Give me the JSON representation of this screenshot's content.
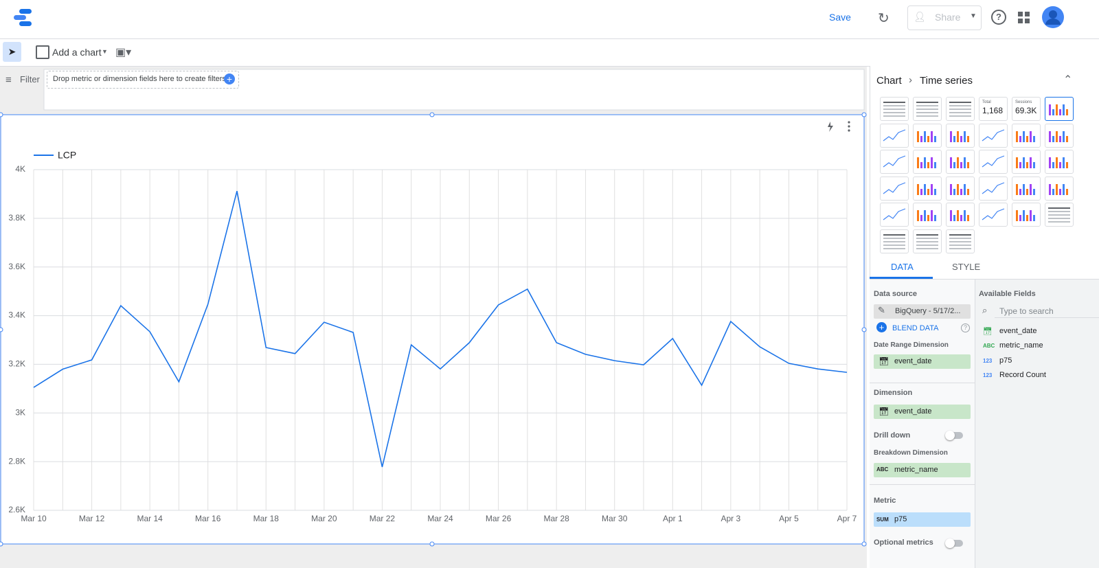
{
  "toolbar": {
    "save": "Save",
    "share": "Share",
    "add_chart": "Add a chart",
    "filter": "Filter",
    "filter_hint": "Drop metric or dimension fields here to create filters"
  },
  "panel": {
    "breadcrumb": [
      "Chart",
      "Time series"
    ],
    "thumbnail_texts": [
      {
        "label": "Total",
        "value": "1,168"
      },
      {
        "label": "Sessions",
        "value": "69.3K"
      }
    ],
    "tabs": [
      "DATA",
      "STYLE"
    ],
    "data_source_label": "Data source",
    "data_source": "BigQuery - 5/17/2...",
    "blend": "BLEND DATA",
    "date_range_label": "Date Range Dimension",
    "date_range_field": "event_date",
    "dimension_label": "Dimension",
    "dimension_field": "event_date",
    "drill_down": "Drill down",
    "breakdown_label": "Breakdown Dimension",
    "breakdown_type": "ABC",
    "breakdown_field": "metric_name",
    "metric_label": "Metric",
    "metric_agg": "SUM",
    "metric_field": "p75",
    "optional_metrics": "Optional metrics",
    "available_label": "Available Fields",
    "search_placeholder": "Type to search",
    "fields": [
      {
        "name": "event_date"
      },
      {
        "type": "ABC",
        "name": "metric_name"
      },
      {
        "type": "123",
        "name": "p75"
      },
      {
        "type": "123",
        "name": "Record Count"
      }
    ]
  },
  "chart_data": {
    "type": "line",
    "categories": [
      "Mar 10",
      null,
      "Mar 12",
      null,
      "Mar 14",
      null,
      "Mar 16",
      null,
      "Mar 18",
      null,
      "Mar 20",
      null,
      "Mar 22",
      null,
      "Mar 24",
      null,
      "Mar 26",
      null,
      "Mar 28",
      null,
      "Mar 30",
      null,
      "Apr 1",
      null,
      "Apr 3",
      null,
      "Apr 5",
      null,
      "Apr 7"
    ],
    "series": [
      {
        "name": "LCP",
        "color": "#1a73e8",
        "values": [
          3105,
          3180,
          3218,
          3441,
          3334,
          3128,
          3447,
          3912,
          3269,
          3244,
          3373,
          3331,
          2778,
          3280,
          3181,
          3289,
          3444,
          3509,
          3289,
          3241,
          3215,
          3198,
          3306,
          3114,
          3376,
          3272,
          3204,
          3181,
          3167
        ]
      }
    ],
    "ylim": [
      2600,
      4000
    ],
    "yticks": [
      {
        "value": 2600,
        "label": "2.6K"
      },
      {
        "value": 2800,
        "label": "2.8K"
      },
      {
        "value": 3000,
        "label": "3K"
      },
      {
        "value": 3200,
        "label": "3.2K"
      },
      {
        "value": 3400,
        "label": "3.4K"
      },
      {
        "value": 3600,
        "label": "3.6K"
      },
      {
        "value": 3800,
        "label": "3.8K"
      },
      {
        "value": 4000,
        "label": "4K"
      }
    ],
    "grid": true
  }
}
